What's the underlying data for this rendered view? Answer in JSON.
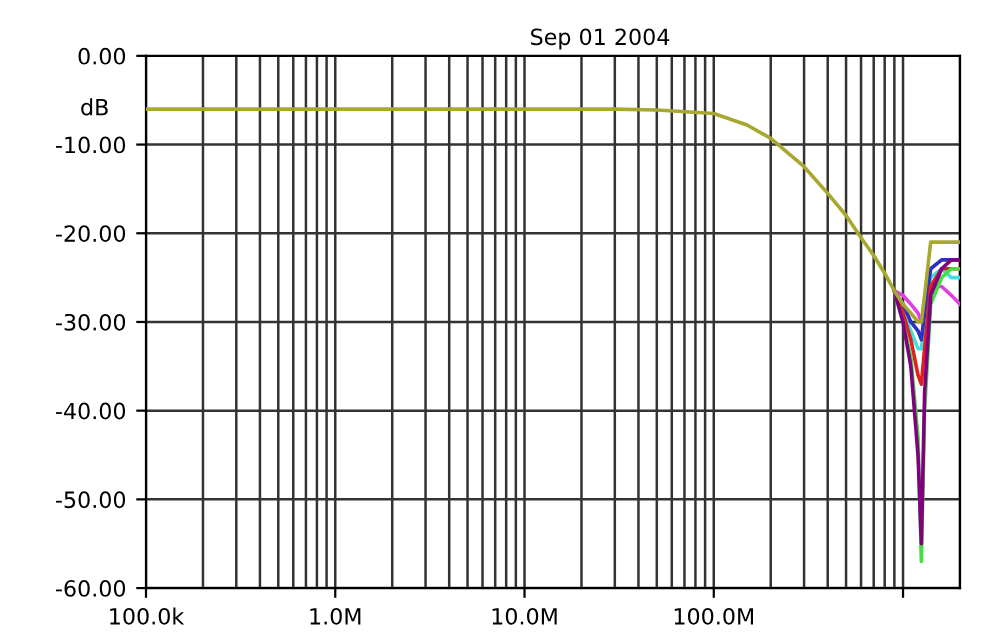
{
  "chart_data": {
    "type": "line",
    "subtitle": "Sep 01 2004",
    "ylabel": "dB",
    "x": [
      100000.0,
      1000000.0,
      10000000.0,
      30000000.0,
      50000000.0,
      100000000.0,
      150000000.0,
      200000000.0,
      300000000.0,
      400000000.0,
      500000000.0,
      600000000.0,
      700000000.0,
      800000000.0,
      900000000.0,
      1000000000.0,
      1100000000.0,
      1200000000.0,
      1250000000.0,
      1300000000.0,
      1400000000.0,
      1600000000.0,
      1800000000.0,
      2000000000.0
    ],
    "series": [
      {
        "color": "#e040e0",
        "values": [
          null,
          null,
          null,
          null,
          null,
          null,
          null,
          null,
          null,
          null,
          null,
          null,
          null,
          null,
          -26.5,
          -27,
          -28,
          -29,
          -30,
          -28,
          -26,
          -26,
          -27,
          -28
        ]
      },
      {
        "color": "#40e0e0",
        "values": [
          null,
          null,
          null,
          null,
          null,
          null,
          null,
          null,
          null,
          null,
          null,
          null,
          null,
          null,
          -26.5,
          -29,
          -31,
          -33,
          -33,
          -30,
          -25,
          -24,
          -25,
          -25
        ]
      },
      {
        "color": "#3030c0",
        "values": [
          null,
          null,
          null,
          null,
          null,
          null,
          null,
          null,
          null,
          null,
          null,
          null,
          null,
          null,
          -26.5,
          -28,
          -30,
          -31,
          -32,
          -29,
          -24,
          -23,
          -23,
          -23
        ]
      },
      {
        "color": "#e02020",
        "values": [
          null,
          null,
          null,
          null,
          null,
          null,
          null,
          null,
          null,
          null,
          null,
          null,
          null,
          null,
          -26.5,
          -29,
          -32,
          -36,
          -37,
          -33,
          -26,
          -24,
          -24,
          -24
        ]
      },
      {
        "color": "#40e040",
        "values": [
          null,
          null,
          null,
          null,
          null,
          null,
          null,
          null,
          null,
          null,
          null,
          null,
          null,
          null,
          -26.5,
          -30,
          -34,
          -43,
          -57,
          -40,
          -28,
          -25,
          -24,
          -24
        ]
      },
      {
        "color": "#800080",
        "values": [
          null,
          null,
          null,
          null,
          null,
          null,
          null,
          null,
          null,
          null,
          null,
          null,
          null,
          null,
          -26.5,
          -30,
          -35,
          -45,
          -55,
          -38,
          -27,
          -24,
          -23,
          -23
        ]
      },
      {
        "color": "#a8a830",
        "values": [
          -6,
          -6,
          -6,
          -6,
          -6.1,
          -6.5,
          -7.8,
          -9.3,
          -12.5,
          -15.5,
          -18,
          -20.5,
          -22.5,
          -24.5,
          -26.5,
          -28,
          -29,
          -30,
          -30,
          -27,
          -21,
          -21,
          -21,
          -21
        ]
      }
    ],
    "log": "x",
    "xlim": [
      100000.0,
      2000000000.0
    ],
    "xticks": [
      {
        "value": 100000.0,
        "label": "100.0k"
      },
      {
        "value": 1000000.0,
        "label": "1.0M"
      },
      {
        "value": 10000000.0,
        "label": "10.0M"
      },
      {
        "value": 100000000.0,
        "label": "100.0M"
      },
      {
        "value": 1000000000.0,
        "label": null
      }
    ],
    "ylim": [
      -60,
      0
    ],
    "yticks": [
      {
        "value": 0,
        "label": "0.00"
      },
      {
        "value": -10,
        "label": "-10.00"
      },
      {
        "value": -20,
        "label": "-20.00"
      },
      {
        "value": -30,
        "label": "-30.00"
      },
      {
        "value": -40,
        "label": "-40.00"
      },
      {
        "value": -50,
        "label": "-50.00"
      },
      {
        "value": -60,
        "label": "-60.00"
      }
    ],
    "grid": true,
    "legend": false,
    "line_style": "solid",
    "marker": "none"
  }
}
